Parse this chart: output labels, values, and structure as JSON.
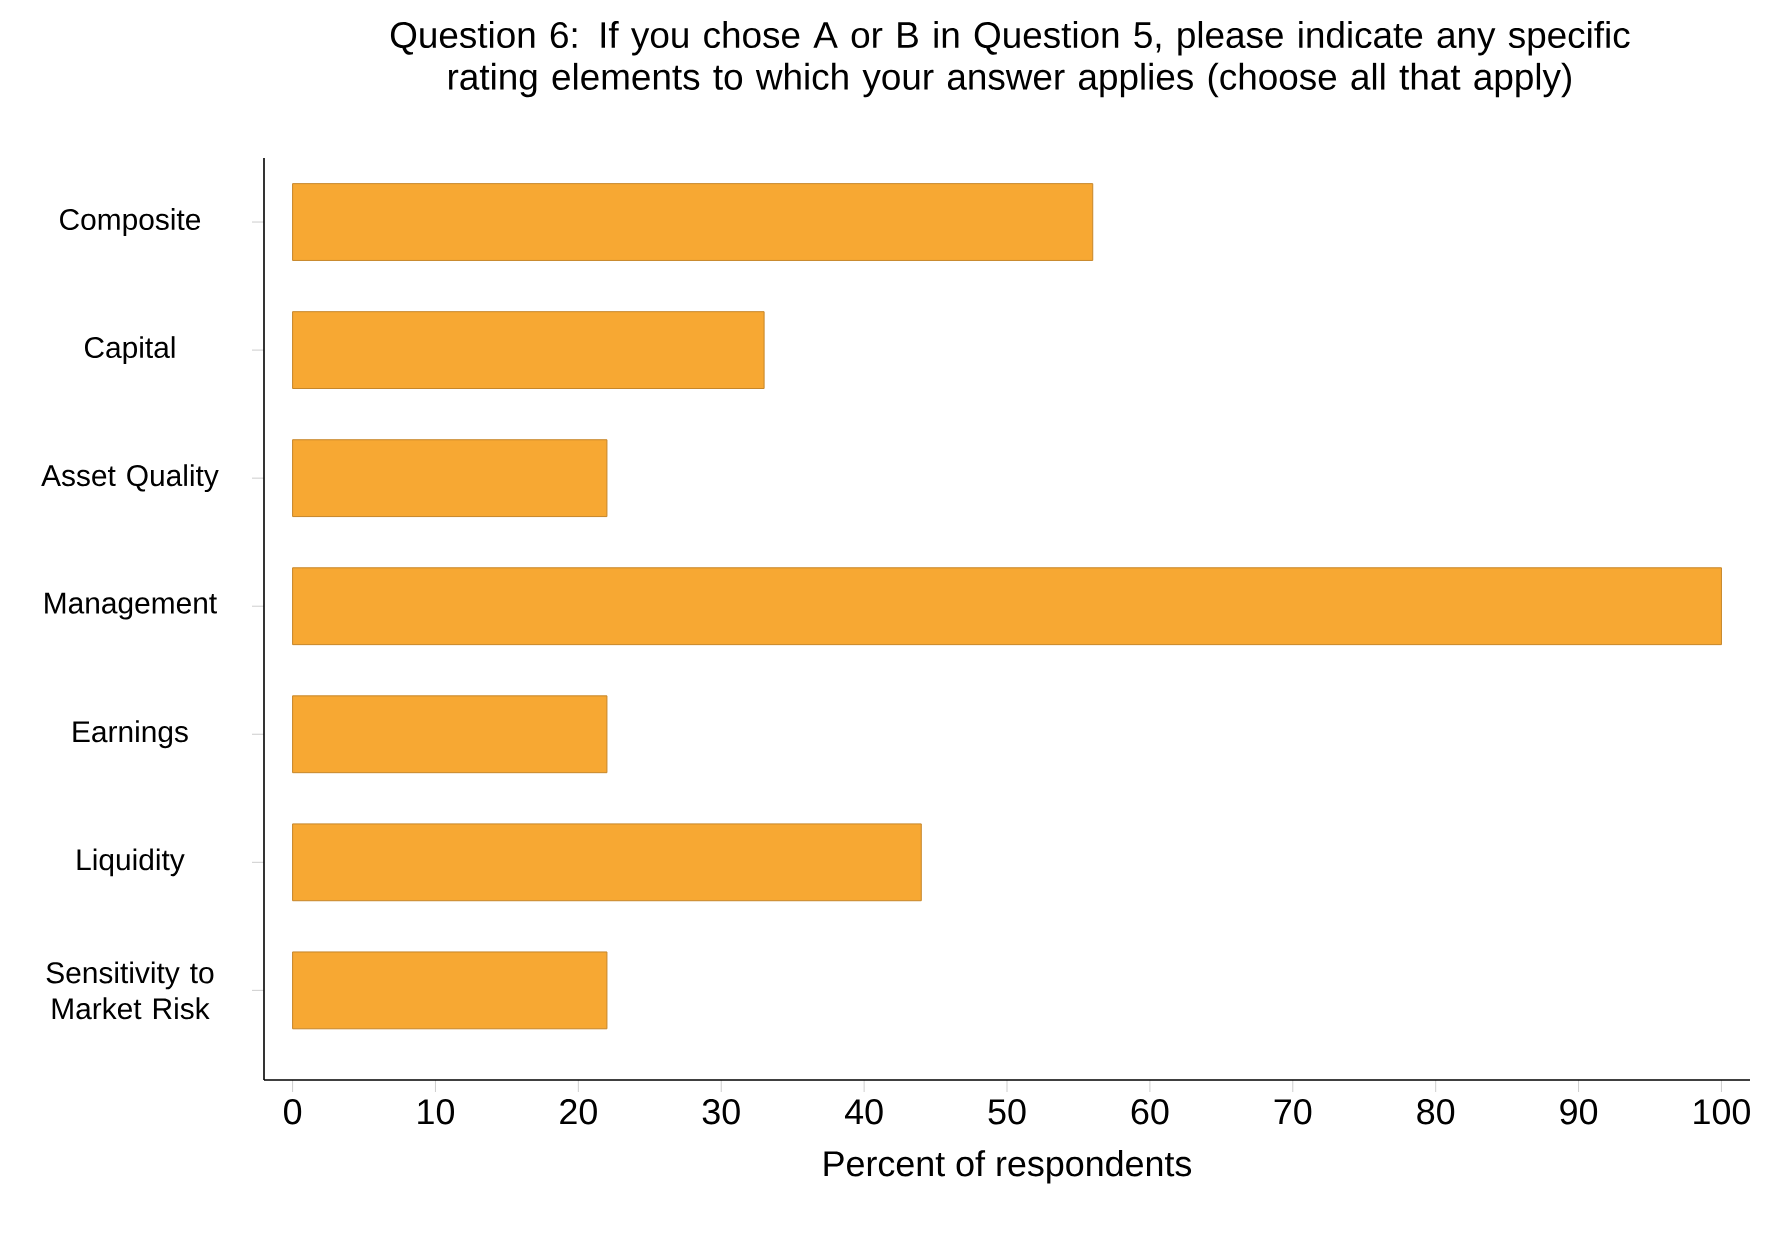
{
  "chart_data": {
    "type": "bar",
    "orientation": "horizontal",
    "title": "Question 6: If you chose A or B in Question 5, please indicate any specific rating elements to which your answer applies (choose all that apply)",
    "xlabel": "Percent of respondents",
    "categories": [
      "Composite",
      "Capital",
      "Asset Quality",
      "Management",
      "Earnings",
      "Liquidity",
      "Sensitivity to Market Risk"
    ],
    "values": [
      56,
      33,
      22,
      100,
      22,
      44,
      22
    ],
    "color": "#f7a833",
    "xlim": [
      -2,
      102
    ],
    "xticks": [
      0,
      10,
      20,
      30,
      40,
      50,
      60,
      70,
      80,
      90,
      100
    ]
  }
}
